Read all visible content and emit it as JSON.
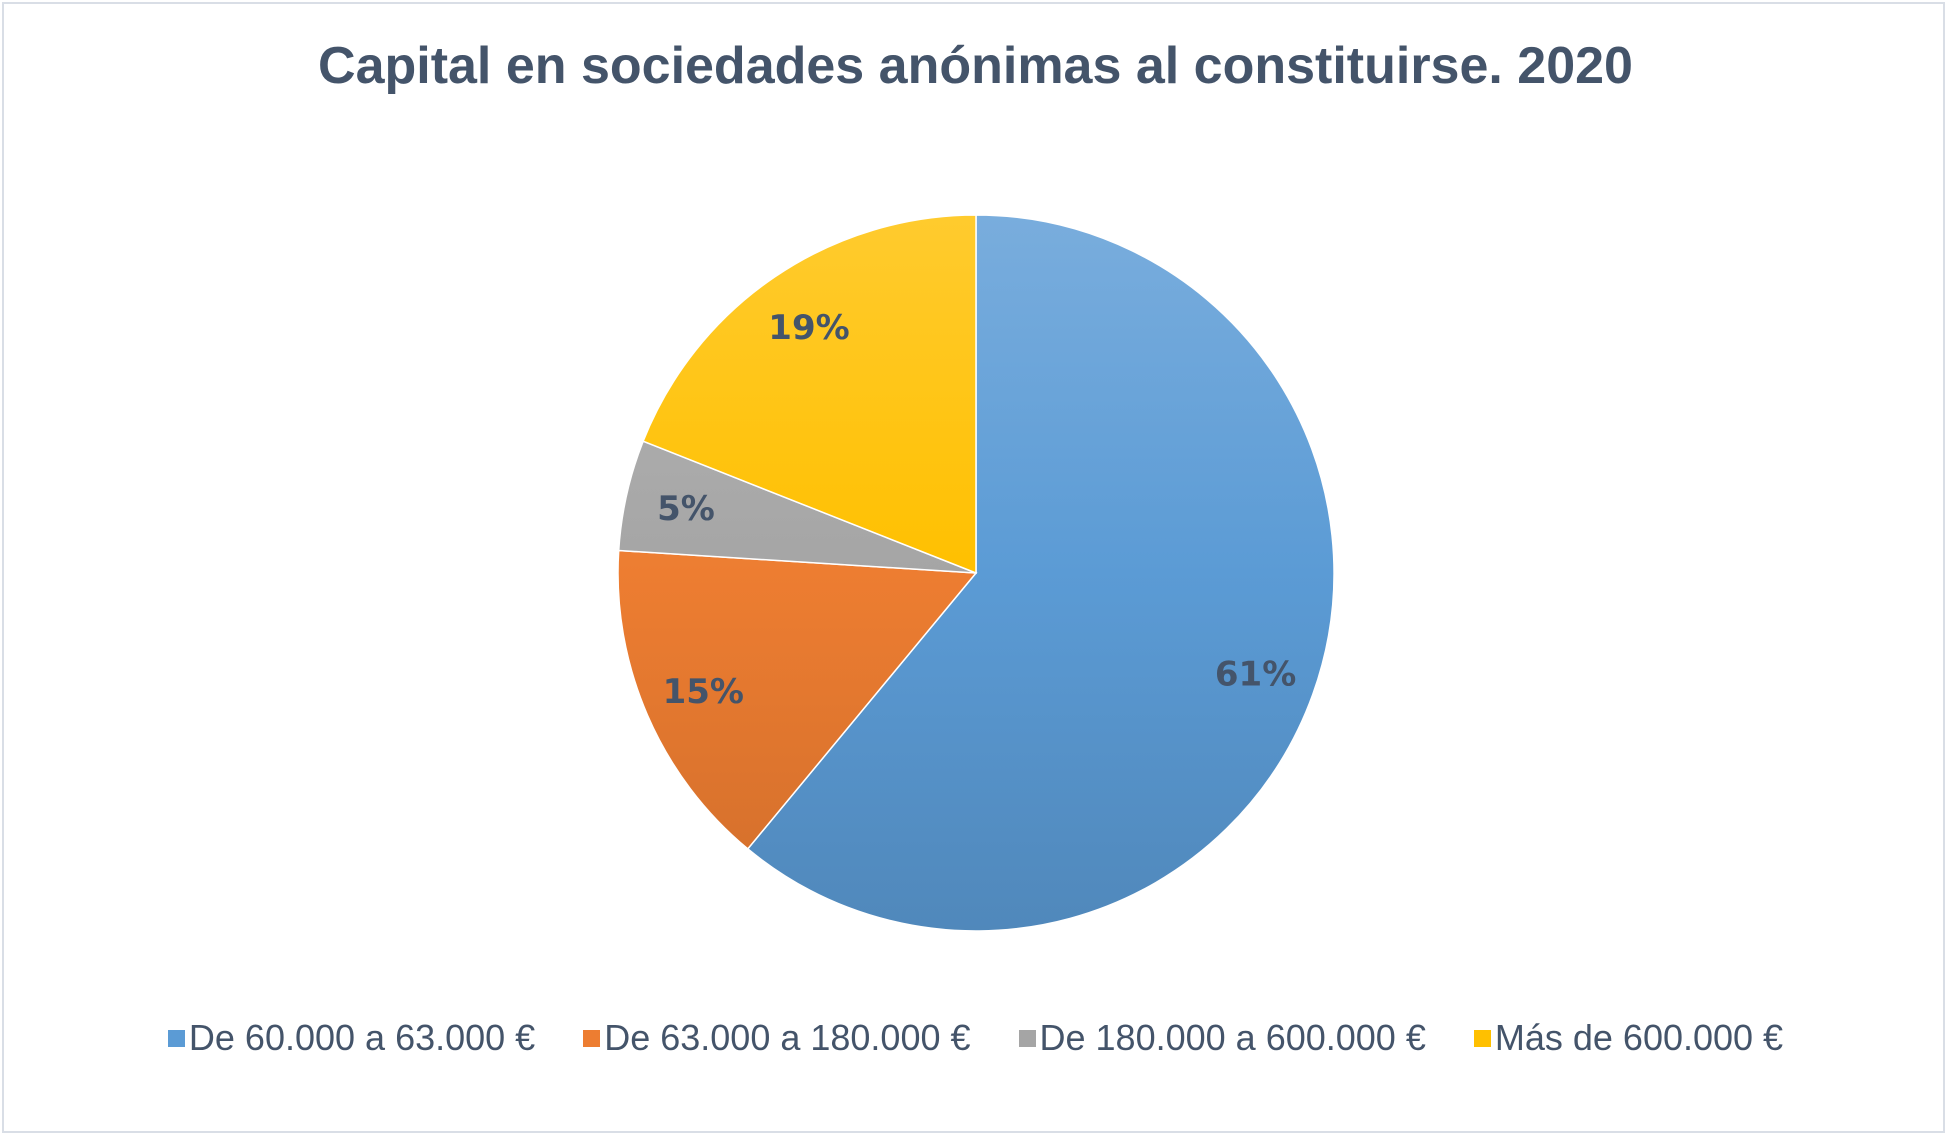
{
  "chart_data": {
    "type": "pie",
    "title": "Capital en sociedades anónimas al constituirse. 2020",
    "categories": [
      "De 60.000 a 63.000 €",
      "De 63.000 a 180.000 €",
      "De 180.000 a 600.000 €",
      "Más de 600.000 €"
    ],
    "values": [
      61,
      15,
      5,
      19
    ],
    "data_labels": [
      "61%",
      "15%",
      "5%",
      "19%"
    ],
    "colors": [
      "#5b9bd5",
      "#ed7d31",
      "#a5a5a5",
      "#ffc000"
    ],
    "legend_position": "bottom"
  }
}
